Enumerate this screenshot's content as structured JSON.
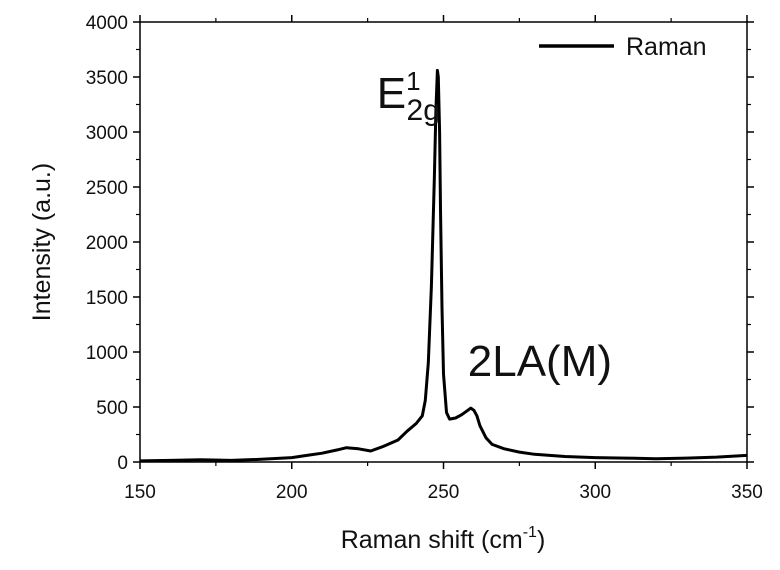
{
  "chart_data": {
    "type": "line",
    "title": "",
    "xlabel": "Raman shift (cm",
    "xlabel_sup": "-1",
    "xlabel_close": ")",
    "ylabel": "Intensity (a.u.)",
    "xlim": [
      150,
      350
    ],
    "ylim": [
      0,
      4000
    ],
    "xticks": [
      150,
      200,
      250,
      300,
      350
    ],
    "yticks": [
      0,
      500,
      1000,
      1500,
      2000,
      2500,
      3000,
      3500,
      4000
    ],
    "grid": false,
    "legend_position": "top-right",
    "line_color": "#000000",
    "series": [
      {
        "name": "Raman",
        "x": [
          150,
          160,
          170,
          180,
          190,
          200,
          205,
          210,
          215,
          218,
          222,
          226,
          230,
          235,
          238,
          241,
          243,
          244,
          245,
          246,
          247,
          247.5,
          248,
          248.3,
          248.7,
          249,
          249.5,
          250,
          251,
          252,
          254,
          256,
          258,
          259,
          260,
          261,
          262,
          264,
          266,
          270,
          275,
          280,
          290,
          300,
          310,
          320,
          330,
          340,
          350
        ],
        "y": [
          10,
          15,
          20,
          15,
          25,
          40,
          60,
          80,
          110,
          130,
          120,
          100,
          140,
          200,
          280,
          350,
          420,
          560,
          900,
          1600,
          2600,
          3200,
          3560,
          3500,
          3000,
          2300,
          1400,
          800,
          450,
          390,
          400,
          430,
          470,
          490,
          470,
          420,
          330,
          220,
          160,
          120,
          90,
          70,
          50,
          40,
          35,
          30,
          35,
          45,
          60
        ]
      }
    ],
    "annotations": [
      {
        "base": "E",
        "sup": "1",
        "sub": "2g",
        "x": 228,
        "y": 3220
      },
      {
        "text": "2LA(M)",
        "x": 258,
        "y": 780
      }
    ]
  }
}
